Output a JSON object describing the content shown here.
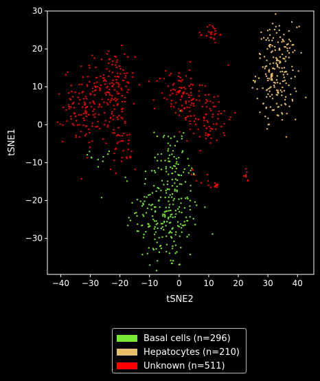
{
  "chart_data": {
    "type": "scatter",
    "xlabel": "tSNE2",
    "ylabel": "tSNE1",
    "xlim": [
      -44.5,
      45.5
    ],
    "ylim": [
      -39.5,
      30
    ],
    "xticks": [
      -40,
      -30,
      -20,
      -10,
      0,
      10,
      20,
      30,
      40
    ],
    "yticks": [
      -30,
      -20,
      -10,
      0,
      10,
      20,
      30
    ],
    "grid": false,
    "legend_position": "bottom-center-outside",
    "series": [
      {
        "name": "Basal cells (n=296)",
        "color": "#77e833",
        "n": 296,
        "clusters": [
          {
            "cx": -4,
            "cy": -23,
            "sx": 5.5,
            "sy": 8,
            "n": 240
          },
          {
            "cx": -3,
            "cy": -8,
            "sx": 2.5,
            "sy": 5,
            "n": 40
          },
          {
            "cx": -26,
            "cy": -8,
            "sx": 2,
            "sy": 2,
            "n": 10
          },
          {
            "cx": -15,
            "cy": -25,
            "sx": 2,
            "sy": 3,
            "n": 6
          }
        ]
      },
      {
        "name": "Hepatocytes (n=210)",
        "color": "#e8be6c",
        "n": 210,
        "clusters": [
          {
            "cx": 33,
            "cy": 14,
            "sx": 3.5,
            "sy": 6,
            "n": 200
          },
          {
            "cx": 33,
            "cy": 3,
            "sx": 2,
            "sy": 2,
            "n": 10
          }
        ]
      },
      {
        "name": "Unknown (n=511)",
        "color": "#ff0000",
        "n": 511,
        "clusters": [
          {
            "cx": -31,
            "cy": 5,
            "sx": 4,
            "sy": 5,
            "n": 140
          },
          {
            "cx": -22,
            "cy": 10,
            "sx": 3.5,
            "sy": 5,
            "n": 110
          },
          {
            "cx": -20,
            "cy": -3,
            "sx": 2,
            "sy": 4,
            "n": 30
          },
          {
            "cx": 0,
            "cy": 8,
            "sx": 4,
            "sy": 3.5,
            "n": 90
          },
          {
            "cx": 10,
            "cy": 2,
            "sx": 4,
            "sy": 4,
            "n": 80
          },
          {
            "cx": 11,
            "cy": 24,
            "sx": 1.3,
            "sy": 1.3,
            "n": 25
          },
          {
            "cx": -17,
            "cy": -9,
            "sx": 1.5,
            "sy": 1.5,
            "n": 10
          },
          {
            "cx": 11,
            "cy": -16,
            "sx": 1.5,
            "sy": 0.6,
            "n": 12
          },
          {
            "cx": 23,
            "cy": -13,
            "sx": 0.5,
            "sy": 1,
            "n": 8
          },
          {
            "cx": 7,
            "cy": -14,
            "sx": 2,
            "sy": 1,
            "n": 6
          }
        ]
      }
    ]
  }
}
